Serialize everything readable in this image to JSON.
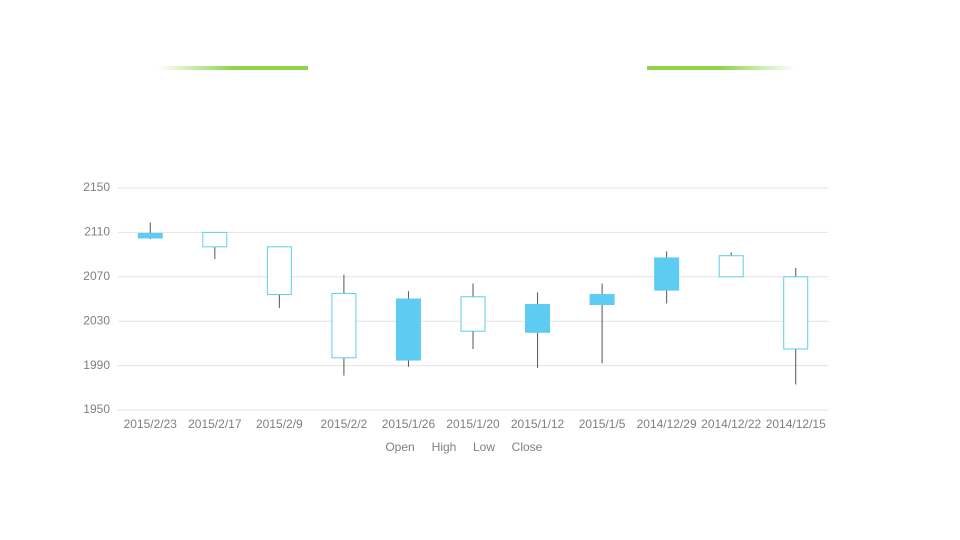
{
  "chart_data": {
    "type": "candlestick",
    "categories": [
      "2015/2/23",
      "2015/2/17",
      "2015/2/9",
      "2015/2/2",
      "2015/1/26",
      "2015/1/20",
      "2015/1/12",
      "2015/1/5",
      "2014/12/29",
      "2014/12/22",
      "2014/12/15"
    ],
    "series": [
      {
        "name": "Open",
        "values": [
          2109,
          2097,
          2054,
          1997,
          2050,
          2021,
          2045,
          2054,
          2087,
          2070,
          2005
        ]
      },
      {
        "name": "High",
        "values": [
          2119,
          2110,
          2097,
          2072,
          2057,
          2064,
          2056,
          2064,
          2093,
          2092,
          2078
        ]
      },
      {
        "name": "Low",
        "values": [
          2104,
          2086,
          2042,
          1981,
          1989,
          2005,
          1988,
          1992,
          2046,
          2070,
          1973
        ]
      },
      {
        "name": "Close",
        "values": [
          2105,
          2110,
          2097,
          2055,
          1995,
          2052,
          2020,
          2045,
          2058,
          2089,
          2070
        ]
      }
    ],
    "color": "#5ecbf2",
    "wick_color": "#555555",
    "ylim": [
      1950,
      2150
    ],
    "yticks": [
      1950,
      1990,
      2030,
      2070,
      2110,
      2150
    ],
    "grid": true,
    "legend": "bottom"
  }
}
